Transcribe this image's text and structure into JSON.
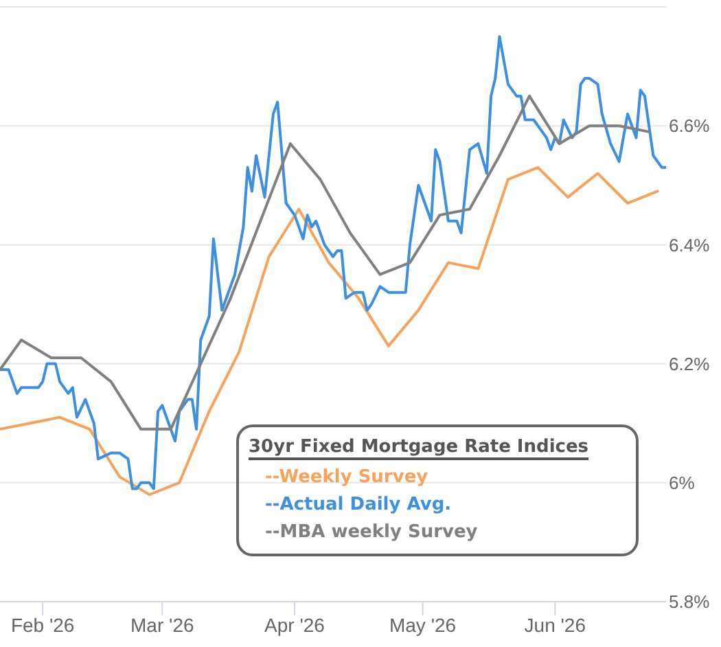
{
  "chart_data": {
    "type": "line",
    "legend_title": "30yr Fixed Mortgage Rate Indices",
    "legend": "bottom right",
    "grid": "y",
    "marker": "none",
    "xlim": [
      "2026-01-22",
      "2026-06-27"
    ],
    "xticks": [
      {
        "value": "2026-02-01",
        "label": "Feb '26"
      },
      {
        "value": "2026-03-01",
        "label": "Mar '26"
      },
      {
        "value": "2026-04-01",
        "label": "Apr '26"
      },
      {
        "value": "2026-05-01",
        "label": "May '26"
      },
      {
        "value": "2026-06-01",
        "label": "Jun '26"
      }
    ],
    "ylim": [
      5.8,
      6.8
    ],
    "yticks": [
      {
        "value": 5.8,
        "label": "5.8%"
      },
      {
        "value": 6,
        "label": "6%"
      },
      {
        "value": 6.2,
        "label": "6.2%"
      },
      {
        "value": 6.4,
        "label": "6.4%"
      },
      {
        "value": 6.6,
        "label": "6.6%"
      },
      {
        "value": 6.8,
        "label": null
      }
    ],
    "series": [
      {
        "name": "--Weekly Survey",
        "color": "#f7a35c",
        "x": [
          "2026-01-22",
          "2026-01-29",
          "2026-02-05",
          "2026-02-12",
          "2026-02-19",
          "2026-02-26",
          "2026-03-05",
          "2026-03-12",
          "2026-03-19",
          "2026-03-26",
          "2026-04-02",
          "2026-04-09",
          "2026-04-16",
          "2026-04-23",
          "2026-04-30",
          "2026-05-07",
          "2026-05-14",
          "2026-05-21",
          "2026-05-28",
          "2026-06-04",
          "2026-06-11",
          "2026-06-18",
          "2026-06-25"
        ],
        "values": [
          6.09,
          6.1,
          6.11,
          6.09,
          6.01,
          5.98,
          6.0,
          6.12,
          6.22,
          6.38,
          6.46,
          6.37,
          6.31,
          6.23,
          6.29,
          6.37,
          6.36,
          6.51,
          6.53,
          6.48,
          6.52,
          6.47,
          6.49
        ]
      },
      {
        "name": "--Actual Daily Avg.",
        "color": "#3d8fe0",
        "x": [
          "2026-01-22",
          "2026-01-24",
          "2026-01-26",
          "2026-01-27",
          "2026-01-31",
          "2026-02-01",
          "2026-02-02",
          "2026-02-04",
          "2026-02-05",
          "2026-02-07",
          "2026-02-08",
          "2026-02-09",
          "2026-02-11",
          "2026-02-13",
          "2026-02-14",
          "2026-02-17",
          "2026-02-19",
          "2026-02-21",
          "2026-02-22",
          "2026-02-23",
          "2026-02-24",
          "2026-02-26",
          "2026-02-27",
          "2026-02-28",
          "2026-03-01",
          "2026-03-04",
          "2026-03-05",
          "2026-03-07",
          "2026-03-08",
          "2026-03-09",
          "2026-03-10",
          "2026-03-12",
          "2026-03-13",
          "2026-03-15",
          "2026-03-18",
          "2026-03-20",
          "2026-03-21",
          "2026-03-22",
          "2026-03-23",
          "2026-03-25",
          "2026-03-27",
          "2026-03-28",
          "2026-03-30",
          "2026-04-01",
          "2026-04-03",
          "2026-04-04",
          "2026-04-05",
          "2026-04-06",
          "2026-04-08",
          "2026-04-10",
          "2026-04-11",
          "2026-04-12",
          "2026-04-13",
          "2026-04-15",
          "2026-04-17",
          "2026-04-18",
          "2026-04-19",
          "2026-04-21",
          "2026-04-23",
          "2026-04-27",
          "2026-04-28",
          "2026-04-30",
          "2026-05-03",
          "2026-05-04",
          "2026-05-05",
          "2026-05-07",
          "2026-05-09",
          "2026-05-10",
          "2026-05-12",
          "2026-05-14",
          "2026-05-16",
          "2026-05-17",
          "2026-05-18",
          "2026-05-19",
          "2026-05-21",
          "2026-05-23",
          "2026-05-24",
          "2026-05-25",
          "2026-05-27",
          "2026-05-29",
          "2026-05-30",
          "2026-05-31",
          "2026-06-01",
          "2026-06-02",
          "2026-06-03",
          "2026-06-05",
          "2026-06-06",
          "2026-06-07",
          "2026-06-08",
          "2026-06-09",
          "2026-06-11",
          "2026-06-12",
          "2026-06-14",
          "2026-06-16",
          "2026-06-18",
          "2026-06-20",
          "2026-06-21",
          "2026-06-22",
          "2026-06-24",
          "2026-06-26",
          "2026-06-27"
        ],
        "values": [
          6.19,
          6.19,
          6.15,
          6.16,
          6.16,
          6.17,
          6.2,
          6.2,
          6.17,
          6.15,
          6.16,
          6.11,
          6.14,
          6.1,
          6.04,
          6.05,
          6.05,
          6.04,
          5.99,
          5.99,
          6.0,
          6.0,
          5.99,
          6.12,
          6.13,
          6.07,
          6.12,
          6.14,
          6.14,
          6.09,
          6.24,
          6.28,
          6.41,
          6.29,
          6.35,
          6.43,
          6.53,
          6.49,
          6.55,
          6.48,
          6.62,
          6.64,
          6.47,
          6.45,
          6.41,
          6.45,
          6.43,
          6.44,
          6.4,
          6.38,
          6.39,
          6.39,
          6.31,
          6.32,
          6.32,
          6.29,
          6.3,
          6.33,
          6.32,
          6.32,
          6.4,
          6.5,
          6.44,
          6.56,
          6.54,
          6.44,
          6.44,
          6.42,
          6.56,
          6.57,
          6.52,
          6.65,
          6.68,
          6.75,
          6.67,
          6.65,
          6.65,
          6.61,
          6.61,
          6.59,
          6.58,
          6.56,
          6.58,
          6.57,
          6.61,
          6.58,
          6.59,
          6.67,
          6.68,
          6.68,
          6.67,
          6.62,
          6.57,
          6.54,
          6.62,
          6.58,
          6.66,
          6.65,
          6.55,
          6.53,
          6.53
        ]
      },
      {
        "name": "--MBA weekly Survey",
        "color": "#808080",
        "x": [
          "2026-01-22",
          "2026-01-27",
          "2026-02-03",
          "2026-02-10",
          "2026-02-17",
          "2026-02-24",
          "2026-03-03",
          "2026-03-10",
          "2026-03-17",
          "2026-03-24",
          "2026-03-31",
          "2026-04-07",
          "2026-04-14",
          "2026-04-21",
          "2026-04-28",
          "2026-05-05",
          "2026-05-12",
          "2026-05-19",
          "2026-05-26",
          "2026-06-02",
          "2026-06-09",
          "2026-06-16",
          "2026-06-23"
        ],
        "values": [
          6.19,
          6.24,
          6.21,
          6.21,
          6.17,
          6.09,
          6.09,
          6.2,
          6.31,
          6.44,
          6.57,
          6.51,
          6.42,
          6.35,
          6.37,
          6.45,
          6.46,
          6.55,
          6.65,
          6.57,
          6.6,
          6.6,
          6.59
        ]
      }
    ]
  }
}
